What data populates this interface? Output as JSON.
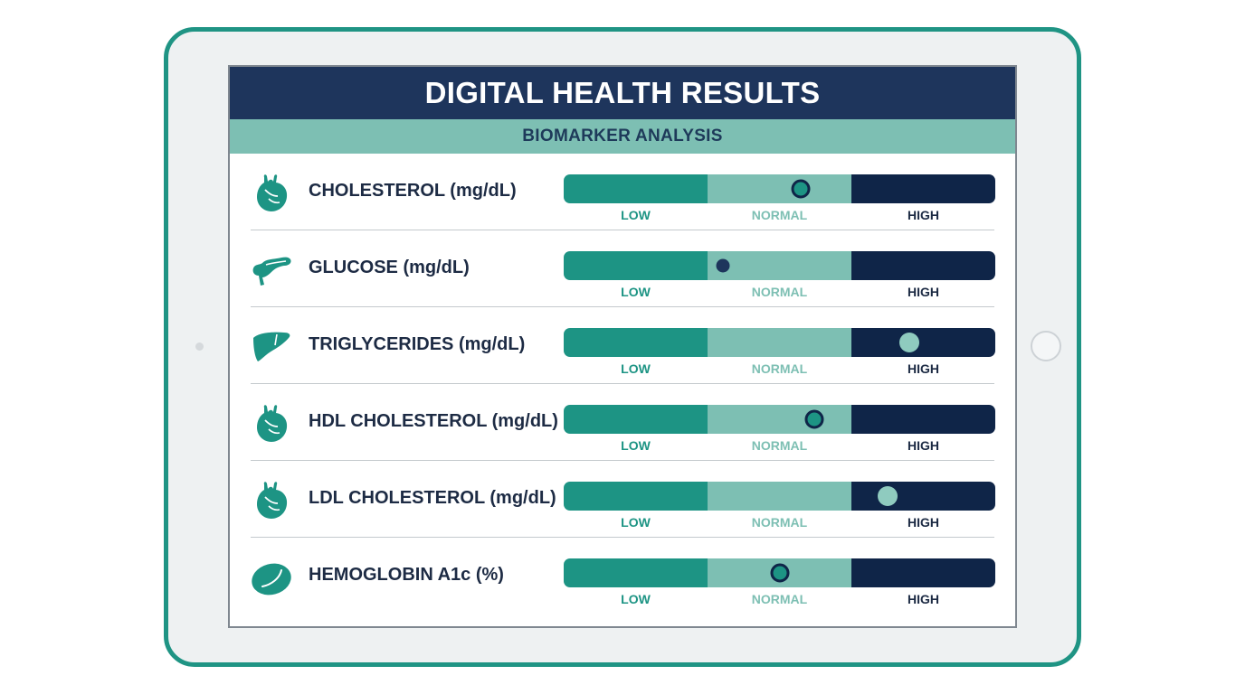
{
  "title": "DIGITAL HEALTH RESULTS",
  "subtitle": "BIOMARKER ANALYSIS",
  "zones": {
    "low": "LOW",
    "normal": "NORMAL",
    "high": "HIGH"
  },
  "colors": {
    "low": "#1d9484",
    "normal": "#7dbfb3",
    "high": "#0f2548",
    "header": "#1e355c",
    "frame": "#1f9484"
  },
  "biomarkers": [
    {
      "label": "CHOLESTEROL (mg/dL)",
      "icon": "heart-icon",
      "position": 0.55,
      "marker_style": "ring"
    },
    {
      "label": "GLUCOSE (mg/dL)",
      "icon": "pancreas-icon",
      "position": 0.37,
      "marker_style": "dot"
    },
    {
      "label": "TRIGLYCERIDES (mg/dL)",
      "icon": "liver-icon",
      "position": 0.8,
      "marker_style": "light"
    },
    {
      "label": "HDL CHOLESTEROL (mg/dL)",
      "icon": "heart-icon",
      "position": 0.58,
      "marker_style": "ring"
    },
    {
      "label": "LDL CHOLESTEROL (mg/dL)",
      "icon": "heart-icon",
      "position": 0.75,
      "marker_style": "light"
    },
    {
      "label": "HEMOGLOBIN A1c (%)",
      "icon": "blood-cell-icon",
      "position": 0.5,
      "marker_style": "ring"
    }
  ]
}
